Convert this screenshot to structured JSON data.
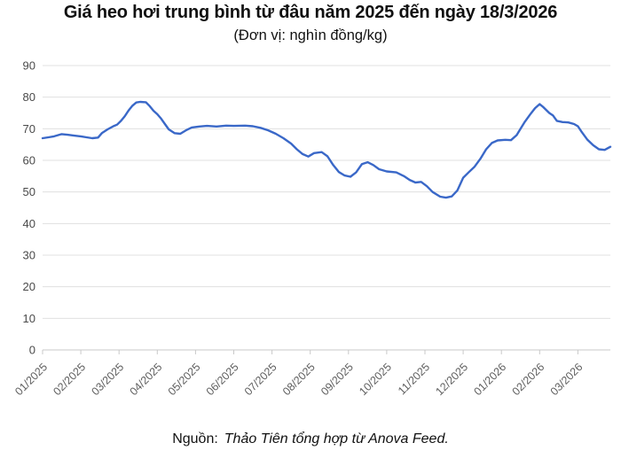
{
  "header": {
    "title": "Giá heo hơi trung bình từ đâu năm 2025 đến ngày 18/3/2026",
    "subtitle": "(Đơn vị: nghìn đồng/kg)"
  },
  "source": {
    "label": "Nguồn:",
    "text": "Thảo Tiên tổng hợp từ Anova Feed."
  },
  "chart_data": {
    "type": "line",
    "title": "Giá heo hơi trung bình từ đâu năm 2025 đến ngày 18/3/2026",
    "subtitle": "(Đơn vị: nghìn đồng/kg)",
    "ylabel": "nghìn đồng/kg",
    "xlabel": "",
    "ylim": [
      0,
      90
    ],
    "y_step": 10,
    "xlim": [
      0,
      14.85
    ],
    "grid": true,
    "legend": "none",
    "x_tick_labels": [
      "01/2025",
      "02/2025",
      "03/2025",
      "04/2025",
      "05/2025",
      "06/2025",
      "07/2025",
      "08/2025",
      "09/2025",
      "10/2025",
      "11/2025",
      "12/2025",
      "01/2026",
      "02/2026",
      "03/2026"
    ],
    "series": [
      {
        "name": "Giá heo hơi trung bình",
        "x": [
          0,
          0.15,
          0.3,
          0.5,
          0.65,
          0.85,
          1.0,
          1.15,
          1.3,
          1.45,
          1.55,
          1.7,
          1.85,
          1.95,
          2.05,
          2.15,
          2.25,
          2.35,
          2.45,
          2.55,
          2.7,
          2.8,
          2.9,
          3.0,
          3.1,
          3.2,
          3.3,
          3.45,
          3.6,
          3.75,
          3.9,
          4.1,
          4.3,
          4.55,
          4.8,
          5.0,
          5.3,
          5.5,
          5.7,
          5.9,
          6.1,
          6.3,
          6.5,
          6.65,
          6.8,
          6.95,
          7.1,
          7.3,
          7.45,
          7.6,
          7.75,
          7.9,
          8.05,
          8.2,
          8.35,
          8.5,
          8.65,
          8.8,
          9.0,
          9.25,
          9.45,
          9.6,
          9.75,
          9.9,
          10.05,
          10.2,
          10.4,
          10.55,
          10.7,
          10.85,
          11.0,
          11.15,
          11.3,
          11.45,
          11.6,
          11.75,
          11.9,
          12.1,
          12.25,
          12.4,
          12.5,
          12.6,
          12.75,
          12.88,
          13.0,
          13.1,
          13.25,
          13.35,
          13.45,
          13.6,
          13.75,
          13.9,
          14.0,
          14.1,
          14.25,
          14.4,
          14.55,
          14.7,
          14.85
        ],
        "values": [
          67.0,
          67.3,
          67.6,
          68.3,
          68.1,
          67.8,
          67.6,
          67.3,
          67.0,
          67.2,
          68.6,
          69.8,
          70.8,
          71.3,
          72.5,
          74.0,
          75.8,
          77.3,
          78.3,
          78.5,
          78.4,
          77.2,
          75.7,
          74.6,
          73.2,
          71.5,
          69.8,
          68.6,
          68.4,
          69.5,
          70.4,
          70.7,
          70.9,
          70.7,
          71.0,
          70.9,
          71.0,
          70.8,
          70.3,
          69.5,
          68.4,
          67.0,
          65.3,
          63.5,
          62.0,
          61.2,
          62.3,
          62.6,
          61.3,
          58.5,
          56.3,
          55.2,
          54.8,
          56.2,
          58.8,
          59.4,
          58.5,
          57.2,
          56.5,
          56.2,
          55.0,
          53.8,
          53.0,
          53.2,
          51.8,
          50.0,
          48.5,
          48.2,
          48.6,
          50.5,
          54.5,
          56.3,
          58.0,
          60.5,
          63.5,
          65.5,
          66.3,
          66.5,
          66.4,
          68.0,
          70.0,
          72.0,
          74.5,
          76.5,
          77.8,
          76.8,
          75.0,
          74.2,
          72.5,
          72.1,
          72.0,
          71.5,
          70.8,
          69.0,
          66.5,
          64.8,
          63.5,
          63.3,
          64.3
        ]
      }
    ],
    "colors": {
      "line": "#3a68c8",
      "gridline": "#e0e0e0",
      "axis": "#c9c9c9",
      "y_tick_text": "#4a4a4a",
      "x_tick_text": "#5f5f5f",
      "background": "#ffffff"
    }
  }
}
